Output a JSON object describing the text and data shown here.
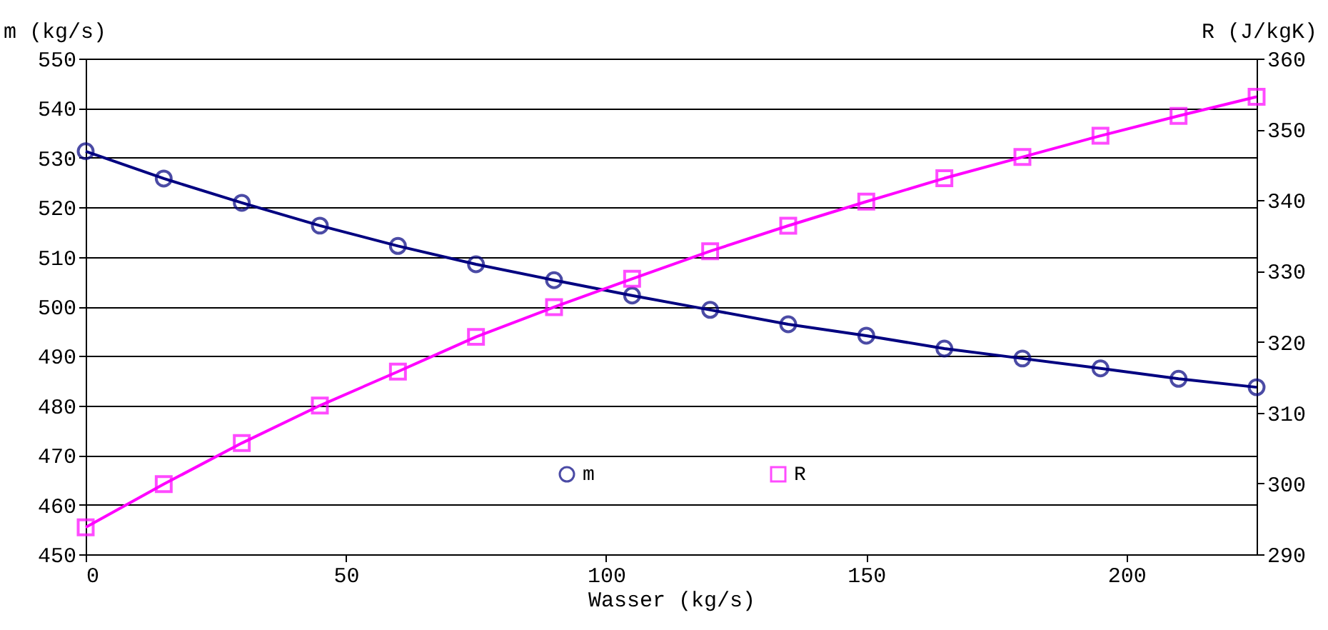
{
  "chart_data": {
    "type": "line",
    "xlabel": "Wasser (kg/s)",
    "ylabel": "m (kg/s)",
    "y2label": "R (J/kgK)",
    "x": [
      0,
      15,
      30,
      45,
      60,
      75,
      90,
      105,
      120,
      135,
      150,
      165,
      180,
      195,
      210,
      225
    ],
    "xlim": [
      0,
      225
    ],
    "xticks": [
      0,
      50,
      100,
      150,
      200
    ],
    "ylim": [
      450,
      550
    ],
    "yticks": [
      450,
      460,
      470,
      480,
      490,
      500,
      510,
      520,
      530,
      540,
      550
    ],
    "y2lim": [
      290,
      360
    ],
    "y2ticks": [
      290,
      300,
      310,
      320,
      330,
      340,
      350,
      360
    ],
    "grid": "y",
    "legend": "bottom",
    "line_style": "solid",
    "series": [
      {
        "name": "m",
        "color": "#000080",
        "marker": "circle",
        "values": [
          531.3,
          525.8,
          520.9,
          516.3,
          512.2,
          508.5,
          505.3,
          502.2,
          499.3,
          496.4,
          494.1,
          491.5,
          489.5,
          487.5,
          485.4,
          483.7
        ]
      },
      {
        "name": "R",
        "color": "#ff00ff",
        "marker": "square",
        "axis": "y2",
        "values": [
          293.8,
          299.9,
          305.7,
          311.0,
          315.8,
          320.7,
          324.9,
          328.9,
          332.8,
          336.4,
          339.8,
          343.1,
          346.1,
          349.1,
          351.9,
          354.6
        ]
      }
    ]
  }
}
